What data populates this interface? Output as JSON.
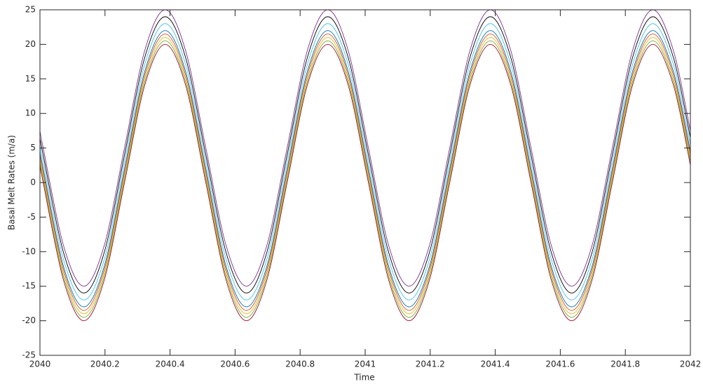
{
  "chart_data": {
    "type": "line",
    "xlabel": "Time",
    "ylabel": "Basal Melt Rates (m/a)",
    "x": [
      2040,
      2040.01,
      2040.0725,
      2040.135,
      2040.1975,
      2040.26,
      2040.3225,
      2040.385,
      2040.4475,
      2040.51,
      2040.5725,
      2040.635,
      2040.6975,
      2040.76,
      2040.8225,
      2040.885,
      2040.9475,
      2041.01,
      2041.0725,
      2041.135,
      2041.1975,
      2041.26,
      2041.3225,
      2041.385,
      2041.4475,
      2041.51,
      2041.5725,
      2041.635,
      2041.6975,
      2041.76,
      2041.8225,
      2041.885,
      2041.9475,
      2042
    ],
    "series": [
      {
        "color": "#7e2f8e",
        "values": [
          7.51,
          5,
          -9.14,
          -15,
          -9.14,
          5,
          19.14,
          25,
          19.14,
          5,
          -9.14,
          -15,
          -9.14,
          5,
          19.14,
          25,
          19.14,
          5,
          -9.14,
          -15,
          -9.14,
          5,
          19.14,
          25,
          19.14,
          5,
          -9.14,
          -15,
          -9.14,
          5,
          19.14,
          25,
          19.14,
          7.51
        ]
      },
      {
        "color": "#000000",
        "values": [
          6.51,
          4,
          -10.14,
          -16,
          -10.14,
          4,
          18.14,
          24,
          18.14,
          4,
          -10.14,
          -16,
          -10.14,
          4,
          18.14,
          24,
          18.14,
          4,
          -10.14,
          -16,
          -10.14,
          4,
          18.14,
          24,
          18.14,
          4,
          -10.14,
          -16,
          -10.14,
          4,
          18.14,
          24,
          18.14,
          6.51
        ]
      },
      {
        "color": "#4dbeee",
        "values": [
          5.51,
          3,
          -11.14,
          -17,
          -11.14,
          3,
          17.14,
          23,
          17.14,
          3,
          -11.14,
          -17,
          -11.14,
          3,
          17.14,
          23,
          17.14,
          3,
          -11.14,
          -17,
          -11.14,
          3,
          17.14,
          23,
          17.14,
          3,
          -11.14,
          -17,
          -11.14,
          3,
          17.14,
          23,
          17.14,
          5.51
        ]
      },
      {
        "color": "#0072bd",
        "values": [
          4.51,
          2,
          -12.14,
          -18,
          -12.14,
          2,
          16.14,
          22,
          16.14,
          2,
          -12.14,
          -18,
          -12.14,
          2,
          16.14,
          22,
          16.14,
          2,
          -12.14,
          -18,
          -12.14,
          2,
          16.14,
          22,
          16.14,
          2,
          -12.14,
          -18,
          -12.14,
          2,
          16.14,
          22,
          16.14,
          4.51
        ]
      },
      {
        "color": "#d95319",
        "values": [
          4.01,
          1.5,
          -12.64,
          -18.5,
          -12.64,
          1.5,
          15.64,
          21.5,
          15.64,
          1.5,
          -12.64,
          -18.5,
          -12.64,
          1.5,
          15.64,
          21.5,
          15.64,
          1.5,
          -12.64,
          -18.5,
          -12.64,
          1.5,
          15.64,
          21.5,
          15.64,
          1.5,
          -12.64,
          -18.5,
          -12.64,
          1.5,
          15.64,
          21.5,
          15.64,
          4.01
        ]
      },
      {
        "color": "#edb120",
        "values": [
          3.51,
          1,
          -13.14,
          -19,
          -13.14,
          1,
          15.14,
          21,
          15.14,
          1,
          -13.14,
          -19,
          -13.14,
          1,
          15.14,
          21,
          15.14,
          1,
          -13.14,
          -19,
          -13.14,
          1,
          15.14,
          21,
          15.14,
          1,
          -13.14,
          -19,
          -13.14,
          1,
          15.14,
          21,
          15.14,
          3.51
        ]
      },
      {
        "color": "#77ac30",
        "values": [
          3.01,
          0.5,
          -13.64,
          -19.5,
          -13.64,
          0.5,
          14.64,
          20.5,
          14.64,
          0.5,
          -13.64,
          -19.5,
          -13.64,
          0.5,
          14.64,
          20.5,
          14.64,
          0.5,
          -13.64,
          -19.5,
          -13.64,
          0.5,
          14.64,
          20.5,
          14.64,
          0.5,
          -13.64,
          -19.5,
          -13.64,
          0.5,
          14.64,
          20.5,
          14.64,
          3.01
        ]
      },
      {
        "color": "#a2142f",
        "values": [
          2.51,
          0,
          -14.14,
          -20,
          -14.14,
          0,
          14.14,
          20,
          14.14,
          0,
          -14.14,
          -20,
          -14.14,
          0,
          14.14,
          20,
          14.14,
          0,
          -14.14,
          -20,
          -14.14,
          0,
          14.14,
          20,
          14.14,
          0,
          -14.14,
          -20,
          -14.14,
          0,
          14.14,
          20,
          14.14,
          2.51
        ]
      }
    ],
    "xlim": [
      2040,
      2042
    ],
    "xticks": [
      2040,
      2040.2,
      2040.4,
      2040.6,
      2040.8,
      2041,
      2041.2,
      2041.4,
      2041.6,
      2041.8,
      2042
    ],
    "ylim": [
      -25,
      25
    ],
    "yticks": [
      -25,
      -20,
      -15,
      -10,
      -5,
      0,
      5,
      10,
      15,
      20,
      25
    ],
    "grid": false
  }
}
